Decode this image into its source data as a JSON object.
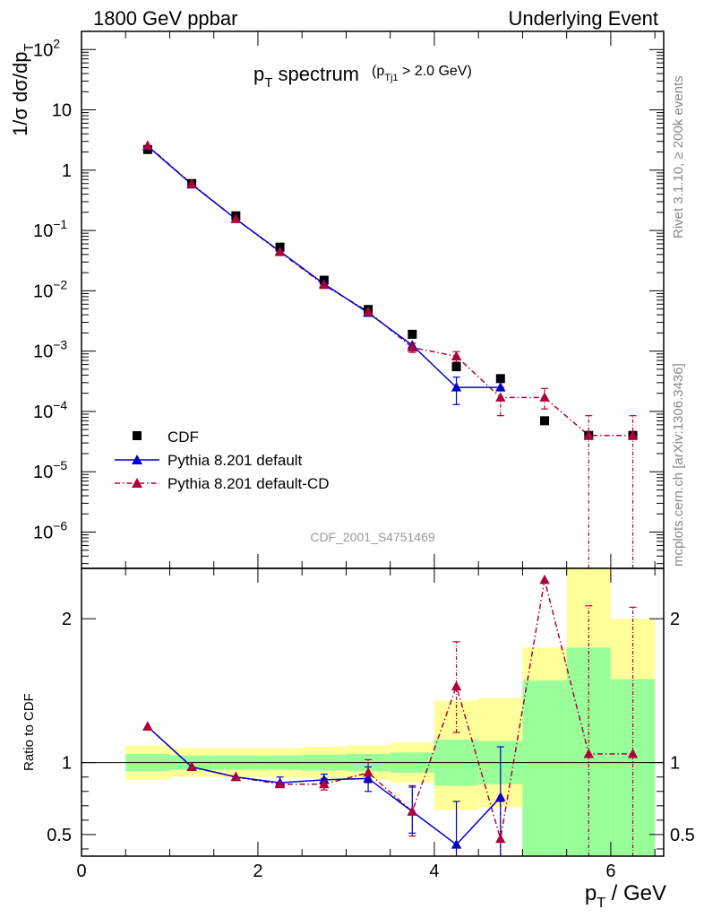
{
  "header": {
    "left": "1800 GeV ppbar",
    "right": "Underlying Event"
  },
  "side_texts": {
    "rivet": "Rivet 3.1.10, ≥ 200k events",
    "mcplots": "mcplots.cern.ch [arXiv:1306.3436]"
  },
  "chart_data": [
    {
      "type": "scatter",
      "panel": "main",
      "title_main": "p",
      "title_sub": "T",
      "title_rest": " spectrum",
      "cut_open": "(p",
      "cut_sub": "Tj1",
      "cut_rest": " > 2.0 GeV)",
      "ylabel_main": "1/σ dσ/dp",
      "ylabel_sub": "T",
      "analysis_id": "CDF_2001_S4751469",
      "yscale": "log",
      "xlim": [
        0,
        6.6
      ],
      "ylim": [
        2.5e-07,
        200
      ],
      "ytick_labels": [
        {
          "value": 100,
          "base": "10",
          "exp": "2"
        },
        {
          "value": 10,
          "base": "10",
          "exp": ""
        },
        {
          "value": 1,
          "base": "1",
          "exp": ""
        },
        {
          "value": 0.1,
          "base": "10",
          "exp": "−1"
        },
        {
          "value": 0.01,
          "base": "10",
          "exp": "−2"
        },
        {
          "value": 0.001,
          "base": "10",
          "exp": "−3"
        },
        {
          "value": 0.0001,
          "base": "10",
          "exp": "−4"
        },
        {
          "value": 1e-05,
          "base": "10",
          "exp": "−5"
        },
        {
          "value": 1e-06,
          "base": "10",
          "exp": "−6"
        }
      ],
      "legend": {
        "placement": "bottom-left",
        "entries": [
          "CDF",
          "Pythia 8.201 default",
          "Pythia 8.201 default-CD"
        ]
      },
      "series": [
        {
          "name": "CDF",
          "color": "#000000",
          "marker": "square",
          "x": [
            0.75,
            1.25,
            1.75,
            2.25,
            2.75,
            3.25,
            3.75,
            4.25,
            4.75,
            5.25,
            5.75,
            6.25
          ],
          "y": [
            2.2,
            0.6,
            0.175,
            0.053,
            0.015,
            0.0049,
            0.0019,
            0.00055,
            0.00035,
            7e-05,
            4e-05,
            4e-05
          ]
        },
        {
          "name": "Pythia 8.201 default",
          "color": "#0000cc",
          "marker": "triangle",
          "line": "solid",
          "x": [
            0.75,
            1.25,
            1.75,
            2.25,
            2.75,
            3.25,
            3.75,
            4.25,
            4.75
          ],
          "y": [
            2.5,
            0.58,
            0.155,
            0.045,
            0.013,
            0.0043,
            0.00125,
            0.00025,
            0.00025
          ],
          "err_lo": [
            null,
            null,
            null,
            null,
            null,
            null,
            null,
            0.00013,
            null
          ],
          "err_hi": [
            null,
            null,
            null,
            null,
            null,
            null,
            null,
            0.00037,
            null
          ]
        },
        {
          "name": "Pythia 8.201 default-CD",
          "color": "#b0003a",
          "marker": "triangle",
          "line": "dashdot",
          "x": [
            0.75,
            1.25,
            1.75,
            2.25,
            2.75,
            3.25,
            3.75,
            4.25,
            4.75,
            5.25,
            5.75,
            6.25
          ],
          "y": [
            2.55,
            0.59,
            0.155,
            0.044,
            0.0125,
            0.0045,
            0.00115,
            0.00082,
            0.00017,
            0.00017,
            4e-05,
            4e-05
          ],
          "err_lo": [
            null,
            null,
            null,
            null,
            null,
            null,
            0.00095,
            0.00066,
            8.5e-05,
            0.00011,
            1e-07,
            1e-07
          ],
          "err_hi": [
            null,
            null,
            null,
            null,
            null,
            null,
            0.00135,
            0.00098,
            0.00025,
            0.00024,
            8.5e-05,
            8.5e-05
          ]
        }
      ]
    },
    {
      "type": "scatter",
      "panel": "ratio",
      "ylabel": "Ratio to CDF",
      "xlabel_main": "p",
      "xlabel_sub": "T",
      "xlabel_rest": " / GeV",
      "xlim": [
        0,
        6.6
      ],
      "ylim": [
        0.35,
        2.35
      ],
      "xtick_labels": [
        "0",
        "2",
        "4",
        "6"
      ],
      "xtick_values": [
        0,
        2,
        4,
        6
      ],
      "ytick_labels": [
        "0.5",
        "1",
        "2"
      ],
      "ytick_values": [
        0.5,
        1,
        2
      ],
      "bands": [
        {
          "x0": 0.5,
          "x1": 1.0,
          "inner": [
            0.94,
            1.06
          ],
          "outer": [
            0.88,
            1.12
          ]
        },
        {
          "x0": 1.0,
          "x1": 1.5,
          "inner": [
            0.95,
            1.05
          ],
          "outer": [
            0.9,
            1.1
          ]
        },
        {
          "x0": 1.5,
          "x1": 2.0,
          "inner": [
            0.95,
            1.05
          ],
          "outer": [
            0.9,
            1.1
          ]
        },
        {
          "x0": 2.0,
          "x1": 2.5,
          "inner": [
            0.95,
            1.05
          ],
          "outer": [
            0.9,
            1.1
          ]
        },
        {
          "x0": 2.5,
          "x1": 3.0,
          "inner": [
            0.945,
            1.055
          ],
          "outer": [
            0.89,
            1.11
          ]
        },
        {
          "x0": 3.0,
          "x1": 3.5,
          "inner": [
            0.94,
            1.06
          ],
          "outer": [
            0.88,
            1.12
          ]
        },
        {
          "x0": 3.5,
          "x1": 4.0,
          "inner": [
            0.93,
            1.07
          ],
          "outer": [
            0.86,
            1.14
          ]
        },
        {
          "x0": 4.0,
          "x1": 4.5,
          "inner": [
            0.84,
            1.16
          ],
          "outer": [
            0.67,
            1.43
          ]
        },
        {
          "x0": 4.5,
          "x1": 5.0,
          "inner": [
            0.85,
            1.15
          ],
          "outer": [
            0.69,
            1.45
          ]
        },
        {
          "x0": 5.0,
          "x1": 5.5,
          "inner": [
            0.35,
            1.57
          ],
          "outer": [
            0.35,
            1.8
          ]
        },
        {
          "x0": 5.5,
          "x1": 6.0,
          "inner": [
            0.35,
            1.8
          ],
          "outer": [
            0.35,
            2.35
          ]
        },
        {
          "x0": 6.0,
          "x1": 6.5,
          "inner": [
            0.35,
            1.58
          ],
          "outer": [
            0.35,
            2.0
          ]
        }
      ],
      "band_colors": {
        "inner": "#99ff99",
        "outer": "#ffff99"
      },
      "series": [
        {
          "name": "Pythia 8.201 default",
          "color": "#0000cc",
          "line": "solid",
          "x": [
            0.75,
            1.25,
            1.75,
            2.25,
            2.75,
            3.25,
            3.75,
            4.25,
            4.75
          ],
          "y": [
            1.25,
            0.97,
            0.9,
            0.86,
            0.88,
            0.89,
            0.66,
            0.43,
            0.76
          ],
          "err_lo": [
            null,
            null,
            null,
            0.83,
            0.84,
            0.8,
            0.51,
            0.23,
            0.35
          ],
          "err_hi": [
            null,
            null,
            null,
            0.9,
            0.92,
            0.97,
            0.83,
            0.73,
            1.11
          ]
        },
        {
          "name": "Pythia 8.201 default-CD",
          "color": "#b0003a",
          "line": "dashdot",
          "x": [
            0.75,
            1.25,
            1.75,
            2.25,
            2.75,
            3.25,
            3.75,
            4.25,
            4.75,
            5.25,
            5.75,
            6.25
          ],
          "y": [
            1.25,
            0.97,
            0.9,
            0.85,
            0.85,
            0.93,
            0.66,
            1.53,
            0.47,
            2.27,
            1.06,
            1.06
          ],
          "err_lo": [
            null,
            null,
            null,
            null,
            0.81,
            0.86,
            0.49,
            1.21,
            0.35,
            null,
            0.35,
            0.35
          ],
          "err_hi": [
            null,
            null,
            null,
            null,
            0.89,
            1.02,
            0.84,
            1.84,
            0.73,
            null,
            2.09,
            2.08
          ]
        }
      ]
    }
  ]
}
